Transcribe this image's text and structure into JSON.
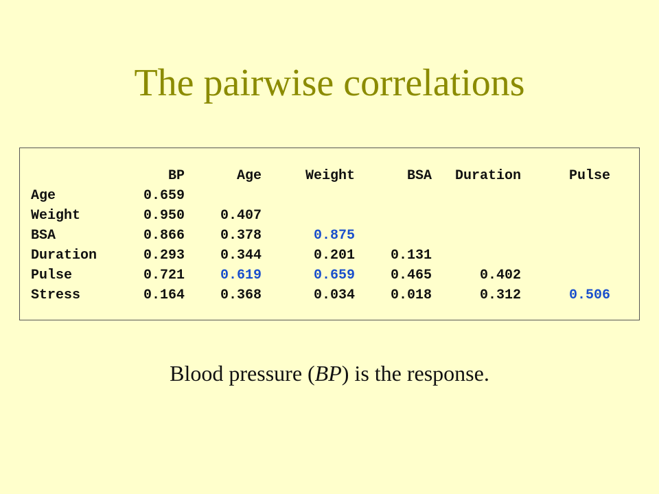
{
  "slide": {
    "title": "The pairwise correlations",
    "subtitle": {
      "prefix": "Blood pressure (",
      "italic": "BP",
      "suffix": ") is the response."
    }
  },
  "table": {
    "columns": [
      "BP",
      "Age",
      "Weight",
      "BSA",
      "Duration",
      "Pulse"
    ],
    "rows": [
      {
        "label": "Age",
        "cells": [
          "0.659",
          "",
          "",
          "",
          "",
          ""
        ]
      },
      {
        "label": "Weight",
        "cells": [
          "0.950",
          "0.407",
          "",
          "",
          "",
          ""
        ]
      },
      {
        "label": "BSA",
        "cells": [
          "0.866",
          "0.378",
          "0.875",
          "",
          "",
          ""
        ]
      },
      {
        "label": "Duration",
        "cells": [
          "0.293",
          "0.344",
          "0.201",
          "0.131",
          "",
          ""
        ]
      },
      {
        "label": "Pulse",
        "cells": [
          "0.721",
          "0.619",
          "0.659",
          "0.465",
          "0.402",
          ""
        ]
      },
      {
        "label": "Stress",
        "cells": [
          "0.164",
          "0.368",
          "0.034",
          "0.018",
          "0.312",
          "0.506"
        ]
      }
    ],
    "highlighted": [
      {
        "row": "BSA",
        "column": "Weight"
      },
      {
        "row": "Pulse",
        "column": "Age"
      },
      {
        "row": "Pulse",
        "column": "Weight"
      },
      {
        "row": "Stress",
        "column": "Pulse"
      }
    ],
    "highlight_color": "#1a4fcc",
    "text_color": "#111111"
  },
  "colors": {
    "background": "#ffffcc",
    "title": "#8b8b00"
  }
}
